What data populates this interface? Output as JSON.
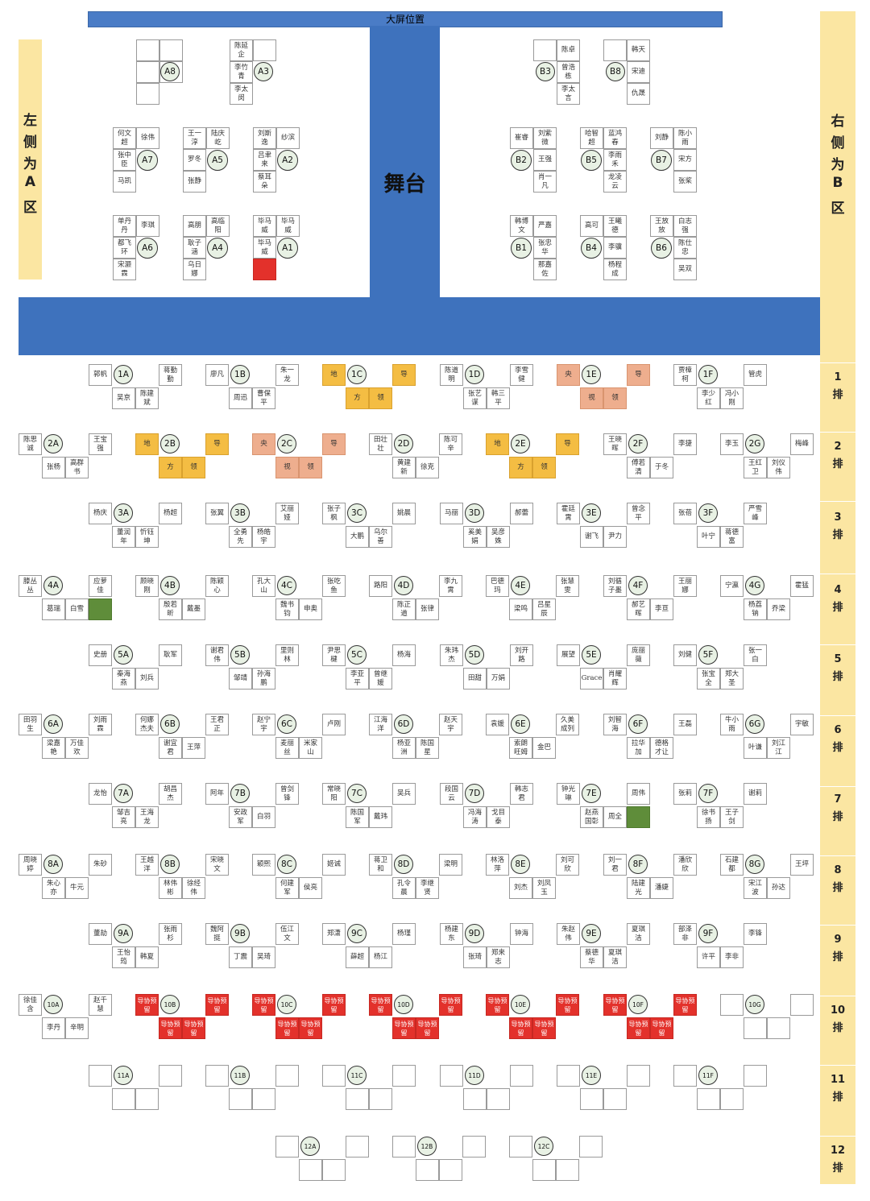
{
  "screen_label": "大屏位置",
  "stage_label": "舞台",
  "left_zone": {
    "chars": [
      "左",
      "侧",
      "为",
      "A",
      "区"
    ]
  },
  "right_zone": {
    "chars": [
      "右",
      "侧",
      "为",
      "B",
      "区"
    ]
  },
  "row_labels": [
    {
      "num": "1",
      "word": "排"
    },
    {
      "num": "2",
      "word": "排"
    },
    {
      "num": "3",
      "word": "排"
    },
    {
      "num": "4",
      "word": "排"
    },
    {
      "num": "5",
      "word": "排"
    },
    {
      "num": "6",
      "word": "排"
    },
    {
      "num": "7",
      "word": "排"
    },
    {
      "num": "8",
      "word": "排"
    },
    {
      "num": "9",
      "word": "排"
    },
    {
      "num": "10",
      "word": "排"
    },
    {
      "num": "11",
      "word": "排"
    },
    {
      "num": "12",
      "word": "排"
    }
  ],
  "colors": {
    "stage": "#3e72bd",
    "zone": "#fbe6a2",
    "reserved_red": "#e3312b",
    "green": "#5f8d3a",
    "leader_yellow": "#f4bd43",
    "leader_salmon": "#eeae8e",
    "table_fill": "#e8f1e4"
  },
  "vip_tables": [
    {
      "id": "A8",
      "tl": "",
      "tr": "",
      "ml": "",
      "bl": ""
    },
    {
      "id": "A3",
      "tl": "陈延企",
      "tr": "",
      "ml": "李竹青",
      "bl": "李太闵"
    },
    {
      "id": "B3",
      "tl": "",
      "tr": "陈卓",
      "ml": "曾浩栋",
      "bl": "李太言"
    },
    {
      "id": "B8",
      "tl": "",
      "tr": "韩天",
      "ml": "宋迪",
      "bl": "仇晟"
    },
    {
      "id": "A7",
      "tl": "何文超",
      "tr": "徐伟",
      "ml": "张中臣",
      "bl": "马凯"
    },
    {
      "id": "A5",
      "tl": "王一淳",
      "tr": "陆庆屹",
      "ml": "罗冬",
      "bl": "张静"
    },
    {
      "id": "A2",
      "tl": "刘斯逸",
      "tr": "纱滨",
      "ml": "吕聿来",
      "bl": "蔡耳朵"
    },
    {
      "id": "B2",
      "tl": "崔睿",
      "tr": "刘紫微",
      "ml": "王强",
      "bl": "肖一凡"
    },
    {
      "id": "B5",
      "tl": "哈智超",
      "tr": "蓝鸿春",
      "ml": "李雨禾",
      "bl": "龙凌云"
    },
    {
      "id": "B7",
      "tl": "刘静",
      "tr": "陈小雨",
      "ml": "宋方",
      "bl": "张桨"
    },
    {
      "id": "A6",
      "tl": "单丹丹",
      "tr": "李琪",
      "ml": "都飞环",
      "bl": "宋灏霖"
    },
    {
      "id": "A4",
      "tl": "高朋",
      "tr": "高临阳",
      "ml": "耿子涵",
      "bl": "乌日娜"
    },
    {
      "id": "A1",
      "tl": "毕马威",
      "tr": "毕马威",
      "ml": "毕马威",
      "bl": ""
    },
    {
      "id": "B1",
      "tl": "韩博文",
      "tr": "严嘉",
      "ml": "张忠华",
      "bl": "那嘉佐"
    },
    {
      "id": "B4",
      "tl": "高可",
      "tr": "王曦德",
      "ml": "李骥",
      "bl": "杨程成"
    },
    {
      "id": "B6",
      "tl": "王放放",
      "tr": "白志强",
      "ml": "陈仕忠",
      "bl": "吴双"
    }
  ],
  "tables": [
    {
      "id": "1A",
      "tl": "",
      "l": "郭帆",
      "tr": "蒋勤勤",
      "bl": "吴京",
      "br": "陈建斌",
      "r": ""
    },
    {
      "id": "1B",
      "tl": "",
      "l": "廖凡",
      "tr": "朱一龙",
      "bl": "周迅",
      "br": "曹保平",
      "r": ""
    },
    {
      "id": "1C",
      "tl": "",
      "l": "地",
      "tr": "导",
      "bl": "方",
      "br": "领",
      "r": ""
    },
    {
      "id": "1D",
      "tl": "",
      "l": "陈道明",
      "tr": "李雪健",
      "bl": "张艺谋",
      "br": "韩三平",
      "r": ""
    },
    {
      "id": "1E",
      "tl": "",
      "l": "央",
      "tr": "导",
      "bl": "视",
      "br": "领",
      "r": ""
    },
    {
      "id": "1F",
      "tl": "",
      "l": "贾樟柯",
      "tr": "管虎",
      "bl": "李少红",
      "br": "冯小刚",
      "r": ""
    },
    {
      "id": "2A",
      "l": "陈思诚",
      "tr": "王宝强",
      "bl": "张杨",
      "br": "高群书"
    },
    {
      "id": "2B",
      "l": "地",
      "tr": "导",
      "bl": "方",
      "br": "领"
    },
    {
      "id": "2C",
      "l": "央",
      "tr": "导",
      "bl": "视",
      "br": "领"
    },
    {
      "id": "2D",
      "l": "田壮壮",
      "tr": "陈可辛",
      "bl": "黄建新",
      "br": "徐克"
    },
    {
      "id": "2E",
      "l": "地",
      "tr": "导",
      "bl": "方",
      "br": "领"
    },
    {
      "id": "2F",
      "l": "王晓晖",
      "tr": "李捷",
      "bl": "傅若清",
      "br": "于冬"
    },
    {
      "id": "2G",
      "l": "李玉",
      "tr": "梅峰",
      "bl": "王红卫",
      "br": "刘仪伟"
    },
    {
      "id": "3A",
      "l": "杨庆",
      "tr": "杨超",
      "bl": "董润年",
      "br": "忻钰坤"
    },
    {
      "id": "3B",
      "l": "张翼",
      "tr": "艾丽娅",
      "bl": "全勇先",
      "br": "杨皓宇"
    },
    {
      "id": "3C",
      "l": "张子枫",
      "tr": "姚晨",
      "bl": "大鹏",
      "br": "乌尔善"
    },
    {
      "id": "3D",
      "l": "马丽",
      "tr": "郝蕾",
      "bl": "奚美娟",
      "br": "吴彦姝"
    },
    {
      "id": "3E",
      "l": "霍廷霄",
      "tr": "曾念平",
      "bl": "谢飞",
      "br": "尹力"
    },
    {
      "id": "3F",
      "l": "张蓓",
      "tr": "严雪峰",
      "bl": "叶宁",
      "br": "蒋德富"
    },
    {
      "id": "4A",
      "l": "滕丛丛",
      "tr": "应萝佳",
      "bl": "葛瑞",
      "br": "白雪"
    },
    {
      "id": "4B",
      "l": "顾晓刚",
      "tr": "陈颖心",
      "bl": "殷若昕",
      "br": "戴墨"
    },
    {
      "id": "4C",
      "l": "孔大山",
      "tr": "张吃鱼",
      "bl": "魏书钧",
      "br": "申奥"
    },
    {
      "id": "4D",
      "l": "路阳",
      "tr": "李九霄",
      "bl": "陈正道",
      "br": "张律"
    },
    {
      "id": "4E",
      "l": "巴德玛",
      "tr": "张慧雯",
      "bl": "梁鸣",
      "br": "吕星辰"
    },
    {
      "id": "4F",
      "l": "刘循子墨",
      "tr": "王丽娜",
      "bl": "郝艺晖",
      "br": "李亘"
    },
    {
      "id": "4G",
      "l": "宁瀛",
      "tr": "霍猛",
      "bl": "杨荔钠",
      "br": "乔梁"
    },
    {
      "id": "5A",
      "l": "史册",
      "tr": "耿军",
      "bl": "秦海燕",
      "br": "刘兵"
    },
    {
      "id": "5B",
      "l": "谢君伟",
      "tr": "里则林",
      "bl": "邹靖",
      "br": "孙海鹏"
    },
    {
      "id": "5C",
      "l": "尹思楗",
      "tr": "杨海",
      "bl": "李亚平",
      "br": "曾继媛"
    },
    {
      "id": "5D",
      "l": "朱玮杰",
      "tr": "刘开路",
      "bl": "田甜",
      "br": "万娟"
    },
    {
      "id": "5E",
      "l": "展望",
      "tr": "庞丽薇",
      "bl": "Grace",
      "br": "肖耀辉"
    },
    {
      "id": "5F",
      "l": "刘健",
      "tr": "张一白",
      "bl": "张宝全",
      "br": "郑大圣"
    },
    {
      "id": "6A",
      "l": "田羽生",
      "tr": "刘雨霖",
      "bl": "梁嘉艳",
      "br": "万佳欢"
    },
    {
      "id": "6B",
      "l": "何娜杰夫",
      "tr": "王君正",
      "bl": "谢宜君",
      "br": "王萍"
    },
    {
      "id": "6C",
      "l": "赵宁宇",
      "tr": "卢刚",
      "bl": "麦丽丝",
      "br": "米家山"
    },
    {
      "id": "6D",
      "l": "江海洋",
      "tr": "赵天宇",
      "bl": "杨亚洲",
      "br": "陈国星"
    },
    {
      "id": "6E",
      "l": "袁媛",
      "tr": "久美成列",
      "bl": "索朗旺姆",
      "br": "金巴"
    },
    {
      "id": "6F",
      "l": "刘智海",
      "tr": "王磊",
      "bl": "拉华加",
      "br": "德格才让"
    },
    {
      "id": "6G",
      "l": "牛小雨",
      "tr": "宇敏",
      "bl": "叶谦",
      "br": "刘江江"
    },
    {
      "id": "7A",
      "l": "龙怡",
      "tr": "胡昌杰",
      "bl": "邹吉亮",
      "br": "王海龙"
    },
    {
      "id": "7B",
      "l": "阿年",
      "tr": "曾剑锋",
      "bl": "安政军",
      "br": "白羽"
    },
    {
      "id": "7C",
      "l": "常晓阳",
      "tr": "吴兵",
      "bl": "陈国军",
      "br": "戴玮"
    },
    {
      "id": "7D",
      "l": "段国云",
      "tr": "韩志君",
      "bl": "冯海涛",
      "br": "戈目泰"
    },
    {
      "id": "7E",
      "l": "钟光琳",
      "tr": "周伟",
      "bl": "赵燕国彰",
      "br": "周全"
    },
    {
      "id": "7F",
      "l": "张莉",
      "tr": "谢莉",
      "bl": "徐书扬",
      "br": "王子剑"
    },
    {
      "id": "8A",
      "l": "周晓婷",
      "tr": "朱砂",
      "bl": "朱心亦",
      "br": "牛元"
    },
    {
      "id": "8B",
      "l": "王越洋",
      "tr": "宋晓文",
      "bl": "林伟彬",
      "br": "徐经伟"
    },
    {
      "id": "8C",
      "l": "颖熙",
      "tr": "姬诚",
      "bl": "何建军",
      "br": "侯亮"
    },
    {
      "id": "8D",
      "l": "蒋卫和",
      "tr": "梁明",
      "bl": "孔令晨",
      "br": "李继贤"
    },
    {
      "id": "8E",
      "l": "林洛萍",
      "tr": "刘可欣",
      "bl": "刘杰",
      "br": "刘凤玉"
    },
    {
      "id": "8F",
      "l": "刘一君",
      "tr": "潘欣欣",
      "bl": "陆建光",
      "br": "潘婕"
    },
    {
      "id": "8G",
      "l": "石建都",
      "tr": "王坪",
      "bl": "宋江波",
      "br": "孙达"
    },
    {
      "id": "9A",
      "l": "董劼",
      "tr": "张雨杉",
      "bl": "王怡筠",
      "br": "韩夏"
    },
    {
      "id": "9B",
      "l": "魏阿挺",
      "tr": "伍江文",
      "bl": "丁震",
      "br": "吴琦"
    },
    {
      "id": "9C",
      "l": "郑潇",
      "tr": "杨瑾",
      "bl": "薛超",
      "br": "杨江"
    },
    {
      "id": "9D",
      "l": "杨建东",
      "tr": "钟海",
      "bl": "张琦",
      "br": "郑来志"
    },
    {
      "id": "9E",
      "l": "朱赵伟",
      "tr": "夏琪洁",
      "bl": "蔡德华",
      "br": "夏琪洁"
    },
    {
      "id": "9F",
      "l": "部泽非",
      "tr": "李锋",
      "bl": "许平",
      "br": "李非"
    },
    {
      "id": "10A",
      "l": "徐佳含",
      "tr": "赵千慧",
      "bl": "李丹",
      "br": "辛明"
    },
    {
      "id": "10B",
      "l": "导协预留",
      "tr": "导协预留",
      "bl": "导协预留",
      "br": "导协预留"
    },
    {
      "id": "10C",
      "l": "导协预留",
      "tr": "导协预留",
      "bl": "导协预留",
      "br": "导协预留"
    },
    {
      "id": "10D",
      "l": "导协预留",
      "tr": "导协预留",
      "bl": "导协预留",
      "br": "导协预留"
    },
    {
      "id": "10E",
      "l": "导协预留",
      "tr": "导协预留",
      "bl": "导协预留",
      "br": "导协预留"
    },
    {
      "id": "10F",
      "l": "导协预留",
      "tr": "导协预留",
      "bl": "导协预留",
      "br": "导协预留"
    },
    {
      "id": "10G",
      "l": "",
      "tr": "",
      "bl": "",
      "br": ""
    },
    {
      "id": "11A",
      "l": "",
      "tr": "",
      "bl": "",
      "br": ""
    },
    {
      "id": "11B",
      "l": "",
      "tr": "",
      "bl": "",
      "br": ""
    },
    {
      "id": "11C",
      "l": "",
      "tr": "",
      "bl": "",
      "br": ""
    },
    {
      "id": "11D",
      "l": "",
      "tr": "",
      "bl": "",
      "br": ""
    },
    {
      "id": "11E",
      "l": "",
      "tr": "",
      "bl": "",
      "br": ""
    },
    {
      "id": "11F",
      "l": "",
      "tr": "",
      "bl": "",
      "br": ""
    },
    {
      "id": "12A",
      "l": "",
      "tr": "",
      "bl": "",
      "br": ""
    },
    {
      "id": "12B",
      "l": "",
      "tr": "",
      "bl": "",
      "br": ""
    },
    {
      "id": "12C",
      "l": "",
      "tr": "",
      "bl": "",
      "br": ""
    }
  ]
}
